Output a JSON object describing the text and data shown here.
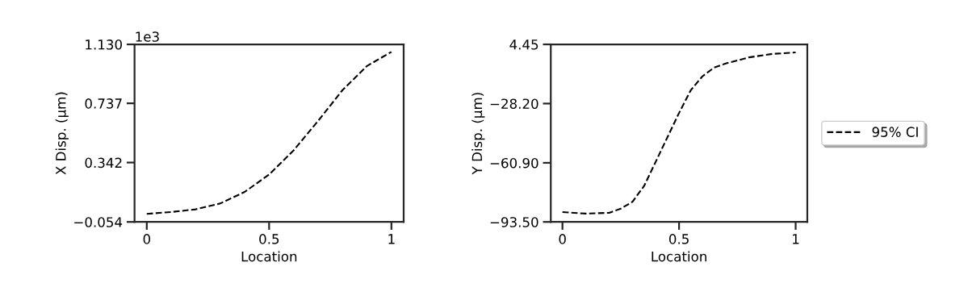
{
  "chart_data": [
    {
      "type": "line",
      "xlabel": "Location",
      "ylabel": "X Disp. (μm)",
      "annotations": [
        "1e3"
      ],
      "x": [
        0,
        0.1,
        0.2,
        0.3,
        0.4,
        0.5,
        0.6,
        0.7,
        0.8,
        0.9,
        1.0
      ],
      "series": [
        {
          "color": "#000000",
          "values": [
            0.0,
            0.012,
            0.03,
            0.069,
            0.146,
            0.262,
            0.423,
            0.619,
            0.825,
            0.986,
            1.08
          ]
        }
      ],
      "line_style": "dashed",
      "xlim": [
        -0.05,
        1.05
      ],
      "xticks": [
        0,
        0.5,
        1
      ],
      "ylim": [
        -0.054,
        1.13
      ],
      "yticks": [
        {
          "value": -0.054,
          "label": "−0.054"
        },
        {
          "value": 0.342,
          "label": "0.342"
        },
        {
          "value": 0.737,
          "label": "0.737"
        },
        {
          "value": 1.13,
          "label": "1.130"
        }
      ]
    },
    {
      "type": "line",
      "xlabel": "Location",
      "ylabel": "Y Disp. (μm)",
      "x": [
        0,
        0.1,
        0.2,
        0.25,
        0.3,
        0.35,
        0.4,
        0.45,
        0.5,
        0.55,
        0.6,
        0.65,
        0.7,
        0.8,
        0.9,
        1.0
      ],
      "series": [
        {
          "name": "95% CI",
          "color": "#000000",
          "values": [
            -88.1,
            -88.9,
            -88.5,
            -86.2,
            -82.4,
            -73.7,
            -60.3,
            -46.8,
            -33.4,
            -20.9,
            -13.2,
            -8.4,
            -6.1,
            -2.7,
            -0.8,
            0.0
          ]
        }
      ],
      "line_style": "dashed",
      "legend": "right",
      "xlim": [
        -0.05,
        1.05
      ],
      "xticks": [
        0,
        0.5,
        1
      ],
      "ylim": [
        -93.5,
        4.45
      ],
      "yticks": [
        {
          "value": -93.5,
          "label": "−93.50"
        },
        {
          "value": -60.9,
          "label": "−60.90"
        },
        {
          "value": -28.2,
          "label": "−28.20"
        },
        {
          "value": 4.45,
          "label": "4.45"
        }
      ]
    }
  ]
}
